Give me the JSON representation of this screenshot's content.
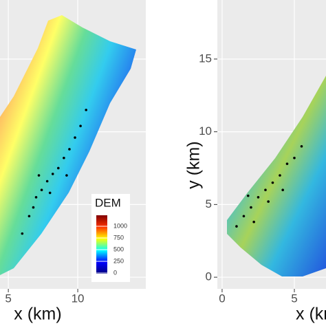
{
  "chart_data": [
    {
      "type": "map",
      "x_label": "x (km)",
      "xlim": [
        4.4,
        14.9
      ],
      "ylim": [
        -0.8,
        19.06
      ],
      "xticks": [
        5,
        10
      ],
      "yticks": [
        0,
        5,
        10,
        15
      ],
      "grid": true,
      "point_color": "#000000",
      "x": [
        6.0,
        6.5,
        7.0,
        7.4,
        7.8,
        8.2,
        8.6,
        9.0,
        9.4,
        9.8,
        10.2,
        10.6,
        7.2,
        8.0,
        9.2,
        6.8
      ],
      "y": [
        3.0,
        4.2,
        5.5,
        6.0,
        6.6,
        7.1,
        7.5,
        8.2,
        8.8,
        9.6,
        10.4,
        11.5,
        7.0,
        5.8,
        7.0,
        4.8
      ],
      "legend": {
        "title": "DEM",
        "lim": [
          -15,
          1235
        ],
        "ticks": [
          1000,
          750,
          500,
          250,
          0
        ]
      }
    },
    {
      "type": "map",
      "x_label": "x (km)",
      "y_label": "y (km)",
      "xlim": [
        -0.33,
        7.19
      ],
      "ylim": [
        -0.8,
        19.06
      ],
      "xticks": [
        0,
        5
      ],
      "yticks": [
        0,
        5,
        10,
        15
      ],
      "grid": true,
      "point_color": "#000000",
      "x": [
        1.0,
        1.5,
        2.0,
        2.5,
        3.0,
        3.5,
        4.0,
        4.5,
        5.0,
        5.5,
        2.2,
        3.2,
        4.2,
        1.8
      ],
      "y": [
        3.5,
        4.2,
        4.8,
        5.5,
        6.0,
        6.5,
        7.0,
        7.8,
        8.2,
        9.0,
        3.8,
        5.2,
        6.0,
        5.6
      ]
    }
  ]
}
